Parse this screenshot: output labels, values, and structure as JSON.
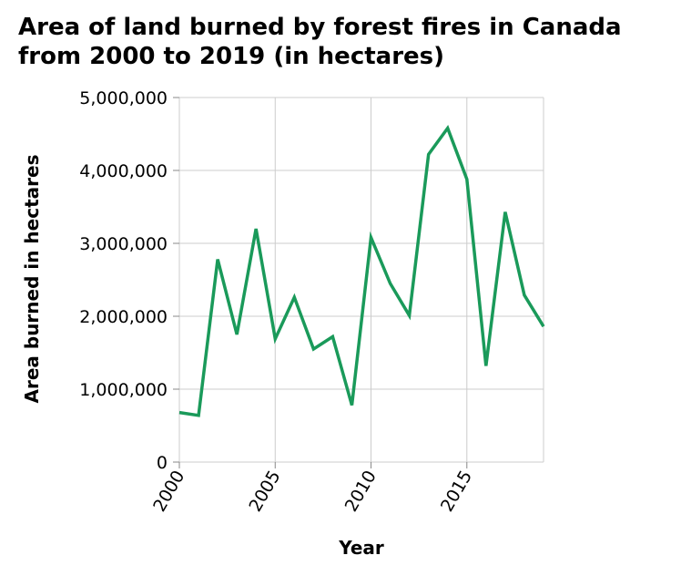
{
  "chart_data": {
    "type": "line",
    "title": [
      "Area of land burned by forest fires in Canada",
      "from 2000 to 2019 (in hectares)"
    ],
    "xlabel": "Year",
    "ylabel": "Area burned in hectares",
    "xlim": [
      2000,
      2019
    ],
    "ylim": [
      0,
      5000000
    ],
    "x_ticks": [
      2000,
      2005,
      2010,
      2015
    ],
    "x_tick_labels": [
      "2000",
      "2005",
      "2010",
      "2015"
    ],
    "y_ticks": [
      0,
      1000000,
      2000000,
      3000000,
      4000000,
      5000000
    ],
    "y_tick_labels": [
      "0",
      "1,000,000",
      "2,000,000",
      "3,000,000",
      "4,000,000",
      "5,000,000"
    ],
    "grid": true,
    "series": [
      {
        "color": "#1a9a5a",
        "x": [
          2000,
          2001,
          2002,
          2003,
          2004,
          2005,
          2006,
          2007,
          2008,
          2009,
          2010,
          2011,
          2012,
          2013,
          2014,
          2015,
          2016,
          2017,
          2018,
          2019
        ],
        "values": [
          680000,
          640000,
          2780000,
          1750000,
          3200000,
          1690000,
          2260000,
          1550000,
          1720000,
          780000,
          3080000,
          2450000,
          2010000,
          4220000,
          4580000,
          3880000,
          1320000,
          3430000,
          2290000,
          1860000
        ]
      }
    ]
  }
}
